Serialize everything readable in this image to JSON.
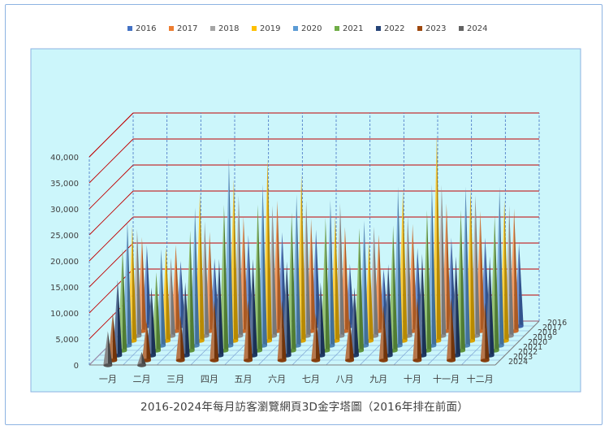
{
  "chart_data": {
    "type": "3d-cone-column",
    "title": "2016-2024年每月訪客瀏覽網頁3D金字塔圖（2016年排在前面）",
    "categories": [
      "一月",
      "二月",
      "三月",
      "四月",
      "五月",
      "六月",
      "七月",
      "八月",
      "九月",
      "十月",
      "十一月",
      "十二月"
    ],
    "yticks": [
      "0",
      "5,000",
      "10,000",
      "15,000",
      "20,000",
      "25,000",
      "30,000",
      "35,000",
      "40,000"
    ],
    "ylim": [
      0,
      40000
    ],
    "legend_position": "top",
    "grid": true,
    "series": [
      {
        "name": "2016",
        "color": "#4472c4",
        "values": [
          15500,
          12500,
          13000,
          17500,
          18000,
          18500,
          12000,
          11000,
          15000,
          17000,
          17000,
          16000
        ]
      },
      {
        "name": "2017",
        "color": "#ed7d31",
        "values": [
          18000,
          16500,
          19000,
          22000,
          25000,
          21500,
          20000,
          18500,
          20500,
          24500,
          23000,
          23500
        ]
      },
      {
        "name": "2018",
        "color": "#a5a5a5",
        "values": [
          20500,
          15000,
          22000,
          27000,
          25000,
          26000,
          25500,
          21000,
          23000,
          29000,
          27000,
          25000
        ]
      },
      {
        "name": "2019",
        "color": "#ffc000",
        "values": [
          22000,
          18000,
          28500,
          31000,
          35000,
          32000,
          24000,
          19000,
          29000,
          39500,
          29000,
          27000
        ]
      },
      {
        "name": "2020",
        "color": "#5b9bd5",
        "values": [
          24000,
          18500,
          26500,
          36000,
          31000,
          29000,
          28000,
          24000,
          30500,
          31000,
          30500,
          30500
        ]
      },
      {
        "name": "2021",
        "color": "#70ad47",
        "values": [
          19500,
          15000,
          23000,
          28000,
          28000,
          26500,
          25500,
          23500,
          24000,
          27000,
          27000,
          26000
        ]
      },
      {
        "name": "2022",
        "color": "#264478",
        "values": [
          14500,
          13000,
          14000,
          18500,
          18500,
          18000,
          14000,
          13000,
          17500,
          19500,
          19000,
          19000
        ]
      },
      {
        "name": "2023",
        "color": "#9e480e",
        "values": [
          9000,
          7500,
          8500,
          11500,
          11500,
          11500,
          9000,
          8000,
          10500,
          12000,
          12000,
          11000
        ]
      },
      {
        "name": "2024",
        "color": "#636363",
        "values": [
          6500,
          2500,
          0,
          0,
          0,
          0,
          0,
          0,
          0,
          0,
          0,
          0
        ]
      }
    ]
  }
}
